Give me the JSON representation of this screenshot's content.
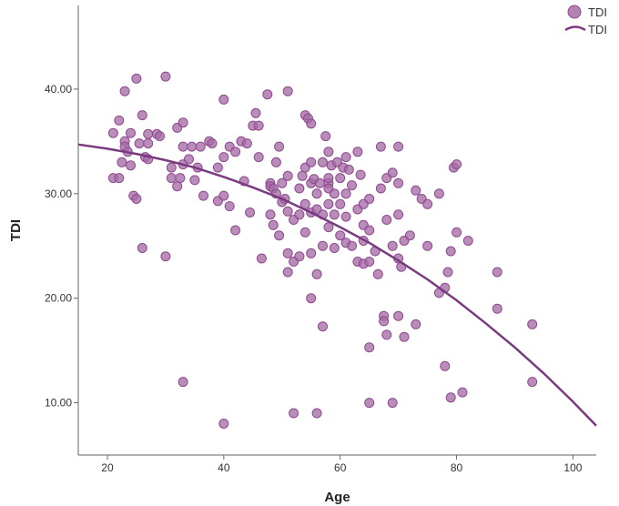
{
  "chart_data": {
    "type": "scatter",
    "xlabel": "Age",
    "ylabel": "TDI",
    "xlim": [
      15,
      104
    ],
    "ylim": [
      5,
      48
    ],
    "x_ticks": [
      20,
      40,
      60,
      80,
      100
    ],
    "y_ticks": [
      10,
      20,
      30,
      40
    ],
    "y_tick_labels": [
      "10.00",
      "20.00",
      "30.00",
      "40.00"
    ],
    "grid": false,
    "legend_position": "top-right",
    "legend": [
      {
        "label": "TDI",
        "kind": "marker"
      },
      {
        "label": "TDI",
        "kind": "line"
      }
    ],
    "color": "#8e4a8f",
    "series": [
      {
        "name": "TDI",
        "kind": "scatter",
        "points": [
          [
            21,
            35.8
          ],
          [
            21,
            31.5
          ],
          [
            22,
            31.5
          ],
          [
            22,
            37
          ],
          [
            22.5,
            33
          ],
          [
            23,
            39.8
          ],
          [
            23,
            35
          ],
          [
            23,
            34.5
          ],
          [
            23.5,
            34
          ],
          [
            24,
            35.8
          ],
          [
            24,
            32.7
          ],
          [
            24.5,
            29.8
          ],
          [
            25,
            41
          ],
          [
            25,
            29.5
          ],
          [
            25.5,
            34.8
          ],
          [
            26,
            24.8
          ],
          [
            26,
            37.5
          ],
          [
            26.5,
            33.5
          ],
          [
            27,
            35.7
          ],
          [
            27,
            34.8
          ],
          [
            27,
            33.3
          ],
          [
            28.5,
            35.7
          ],
          [
            29,
            35.5
          ],
          [
            30,
            41.2
          ],
          [
            30,
            24
          ],
          [
            31,
            31.5
          ],
          [
            31,
            32.5
          ],
          [
            32,
            30.7
          ],
          [
            32,
            36.3
          ],
          [
            32.5,
            31.5
          ],
          [
            33,
            36.8
          ],
          [
            33,
            34.5
          ],
          [
            33,
            32.8
          ],
          [
            33,
            12
          ],
          [
            34,
            33.3
          ],
          [
            34.5,
            34.5
          ],
          [
            35,
            31.3
          ],
          [
            35.5,
            32.5
          ],
          [
            36,
            34.5
          ],
          [
            36.5,
            29.8
          ],
          [
            37.5,
            35
          ],
          [
            38,
            34.8
          ],
          [
            39,
            32.5
          ],
          [
            39,
            29.3
          ],
          [
            40,
            39
          ],
          [
            40,
            33.5
          ],
          [
            40,
            29.8
          ],
          [
            40,
            8
          ],
          [
            41,
            34.5
          ],
          [
            41,
            28.8
          ],
          [
            42,
            26.5
          ],
          [
            42,
            34
          ],
          [
            43,
            35
          ],
          [
            43.5,
            31.2
          ],
          [
            44,
            34.8
          ],
          [
            44.5,
            28.2
          ],
          [
            45,
            36.5
          ],
          [
            45.5,
            37.7
          ],
          [
            46,
            33.5
          ],
          [
            46,
            36.5
          ],
          [
            46.5,
            23.8
          ],
          [
            47.5,
            39.5
          ],
          [
            48,
            31
          ],
          [
            48,
            28
          ],
          [
            48,
            30.7
          ],
          [
            48.5,
            30.5
          ],
          [
            48.5,
            27
          ],
          [
            49,
            30
          ],
          [
            49,
            33
          ],
          [
            49.5,
            26
          ],
          [
            49.5,
            34.5
          ],
          [
            50,
            29.2
          ],
          [
            50,
            31
          ],
          [
            50.5,
            29.5
          ],
          [
            51,
            39.8
          ],
          [
            51,
            31.7
          ],
          [
            51,
            28.3
          ],
          [
            51,
            22.5
          ],
          [
            51,
            24.3
          ],
          [
            52,
            27.5
          ],
          [
            52,
            23.5
          ],
          [
            52,
            9
          ],
          [
            53,
            30.5
          ],
          [
            53,
            28
          ],
          [
            53,
            24
          ],
          [
            53.5,
            31.7
          ],
          [
            54,
            32.5
          ],
          [
            54,
            29
          ],
          [
            54,
            26.3
          ],
          [
            54,
            37.5
          ],
          [
            54.5,
            37.2
          ],
          [
            55,
            36.7
          ],
          [
            55,
            33
          ],
          [
            55,
            31
          ],
          [
            55,
            28.2
          ],
          [
            55,
            24.3
          ],
          [
            55,
            20
          ],
          [
            55.5,
            31.4
          ],
          [
            56,
            30
          ],
          [
            56,
            28.5
          ],
          [
            56,
            22.3
          ],
          [
            56,
            9
          ],
          [
            56.5,
            31
          ],
          [
            57,
            33
          ],
          [
            57,
            28
          ],
          [
            57,
            25
          ],
          [
            57,
            17.3
          ],
          [
            57.5,
            35.5
          ],
          [
            58,
            34
          ],
          [
            58,
            31
          ],
          [
            58,
            30.5
          ],
          [
            58,
            29
          ],
          [
            58,
            26.8
          ],
          [
            58,
            31.5
          ],
          [
            58.5,
            32.7
          ],
          [
            59,
            30
          ],
          [
            59,
            28
          ],
          [
            59,
            24.8
          ],
          [
            59.5,
            33
          ],
          [
            60,
            31.5
          ],
          [
            60,
            29
          ],
          [
            60,
            26
          ],
          [
            60.5,
            32.5
          ],
          [
            61,
            33.5
          ],
          [
            61,
            30
          ],
          [
            61,
            27.8
          ],
          [
            61,
            25.3
          ],
          [
            61.5,
            32.3
          ],
          [
            62,
            25
          ],
          [
            62,
            30.8
          ],
          [
            63,
            34
          ],
          [
            63,
            28.5
          ],
          [
            63,
            23.5
          ],
          [
            63.5,
            31.8
          ],
          [
            64,
            27
          ],
          [
            64,
            25.5
          ],
          [
            64,
            23.3
          ],
          [
            64,
            29
          ],
          [
            65,
            29.5
          ],
          [
            65,
            26.5
          ],
          [
            65,
            23.5
          ],
          [
            65,
            15.3
          ],
          [
            65,
            10
          ],
          [
            66,
            24.5
          ],
          [
            66.5,
            22.3
          ],
          [
            67,
            34.5
          ],
          [
            67,
            30.5
          ],
          [
            67.5,
            18.3
          ],
          [
            67.5,
            17.8
          ],
          [
            68,
            31.5
          ],
          [
            68,
            27.5
          ],
          [
            68,
            16.5
          ],
          [
            69,
            32
          ],
          [
            69,
            25
          ],
          [
            69,
            10
          ],
          [
            70,
            34.5
          ],
          [
            70,
            31
          ],
          [
            70,
            28
          ],
          [
            70,
            23.8
          ],
          [
            70,
            18.3
          ],
          [
            70.5,
            23
          ],
          [
            71,
            25.5
          ],
          [
            71,
            16.3
          ],
          [
            72,
            26
          ],
          [
            73,
            30.3
          ],
          [
            73,
            17.5
          ],
          [
            74,
            29.5
          ],
          [
            75,
            29
          ],
          [
            75,
            25
          ],
          [
            77,
            30
          ],
          [
            77,
            20.5
          ],
          [
            78,
            21
          ],
          [
            78,
            13.5
          ],
          [
            78.5,
            22.5
          ],
          [
            79,
            24.5
          ],
          [
            79,
            10.5
          ],
          [
            79.5,
            32.5
          ],
          [
            80,
            32.8
          ],
          [
            80,
            26.3
          ],
          [
            81,
            11
          ],
          [
            82,
            25.5
          ],
          [
            87,
            22.5
          ],
          [
            87,
            19
          ],
          [
            93,
            17.5
          ],
          [
            93,
            12
          ]
        ]
      },
      {
        "name": "TDI",
        "kind": "fit-line",
        "points": [
          [
            15,
            34.7
          ],
          [
            20,
            34.3
          ],
          [
            25,
            33.8
          ],
          [
            30,
            33.2
          ],
          [
            35,
            32.5
          ],
          [
            40,
            31.6
          ],
          [
            45,
            30.6
          ],
          [
            50,
            29.5
          ],
          [
            55,
            28.2
          ],
          [
            60,
            26.8
          ],
          [
            65,
            25.3
          ],
          [
            70,
            23.6
          ],
          [
            75,
            21.8
          ],
          [
            80,
            19.8
          ],
          [
            85,
            17.6
          ],
          [
            90,
            15.3
          ],
          [
            95,
            12.8
          ],
          [
            100,
            10.1
          ],
          [
            104,
            7.8
          ]
        ]
      }
    ]
  }
}
